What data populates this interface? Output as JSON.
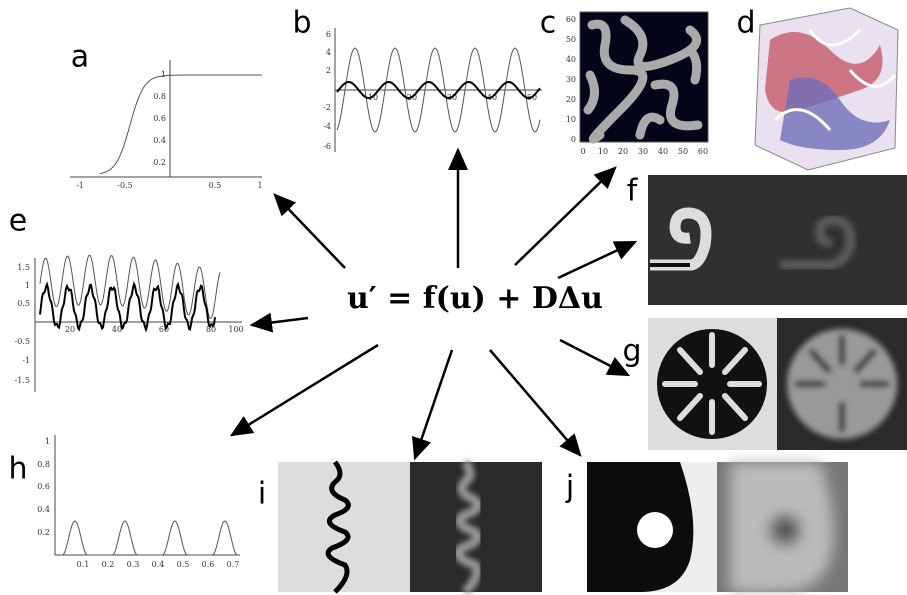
{
  "equation": "u′ = f(u) + DΔu",
  "panels": [
    {
      "label": "a",
      "xticks": [
        "-1",
        "-0.5",
        "0.5",
        "1"
      ],
      "yticks": [
        "1",
        "0.8",
        "0.6",
        "0.4",
        "0.2"
      ]
    },
    {
      "label": "b",
      "xticks": [
        "10",
        "20",
        "30",
        "40",
        "50"
      ],
      "yticks": [
        "6",
        "4",
        "2",
        "-2",
        "-4",
        "-6"
      ]
    },
    {
      "label": "c",
      "xticks": [
        "0",
        "10",
        "20",
        "30",
        "40",
        "50",
        "60"
      ],
      "yticks": [
        "0",
        "10",
        "20",
        "30",
        "40",
        "50",
        "60"
      ]
    },
    {
      "label": "d"
    },
    {
      "label": "e",
      "xticks": [
        "20",
        "40",
        "60",
        "80",
        "100"
      ],
      "yticks": [
        "1.5",
        "1",
        "0.5",
        "-0.5",
        "-1",
        "-1.5"
      ]
    },
    {
      "label": "f"
    },
    {
      "label": "g"
    },
    {
      "label": "h",
      "xticks": [
        "0.1",
        "0.2",
        "0.3",
        "0.4",
        "0.5",
        "0.6",
        "0.7"
      ],
      "yticks": [
        "1",
        "0.8",
        "0.6",
        "0.4",
        "0.2"
      ]
    },
    {
      "label": "i"
    },
    {
      "label": "j"
    }
  ]
}
